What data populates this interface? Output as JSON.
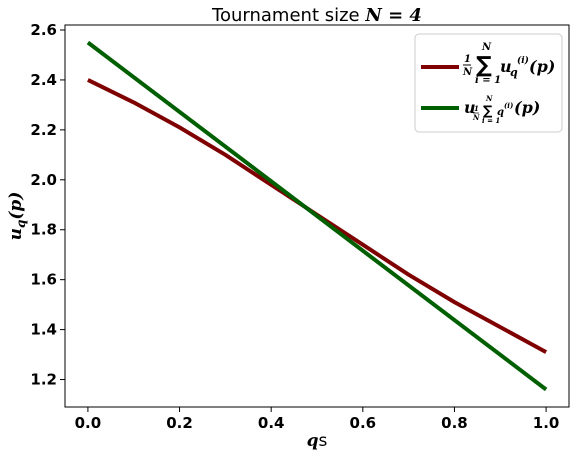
{
  "chart_data": {
    "type": "line",
    "title_prefix": "Tournament size ",
    "title_math": "N = 4",
    "xlabel_math": "q",
    "xlabel_suffix": "s",
    "ylabel_math": "u",
    "ylabel_sub": "q",
    "ylabel_arg": "(p)",
    "xlim": [
      -0.05,
      1.05
    ],
    "ylim": [
      1.09,
      2.62
    ],
    "xticks": [
      0.0,
      0.2,
      0.4,
      0.6,
      0.8,
      1.0
    ],
    "xtick_labels": [
      "0.0",
      "0.2",
      "0.4",
      "0.6",
      "0.8",
      "1.0"
    ],
    "yticks": [
      1.2,
      1.4,
      1.6,
      1.8,
      2.0,
      2.2,
      2.4,
      2.6
    ],
    "ytick_labels": [
      "1.2",
      "1.4",
      "1.6",
      "1.8",
      "2.0",
      "2.2",
      "2.4",
      "2.6"
    ],
    "grid": false,
    "legend_position": "top-right",
    "series": [
      {
        "color": "#7f0000",
        "x": [
          0.0,
          0.1,
          0.2,
          0.3,
          0.4,
          0.5,
          0.6,
          0.7,
          0.8,
          0.9,
          1.0
        ],
        "y": [
          2.4,
          2.31,
          2.21,
          2.1,
          1.98,
          1.86,
          1.74,
          1.62,
          1.51,
          1.41,
          1.31
        ]
      },
      {
        "color": "#005f00",
        "x": [
          0.0,
          1.0
        ],
        "y": [
          2.55,
          1.16
        ]
      }
    ]
  }
}
